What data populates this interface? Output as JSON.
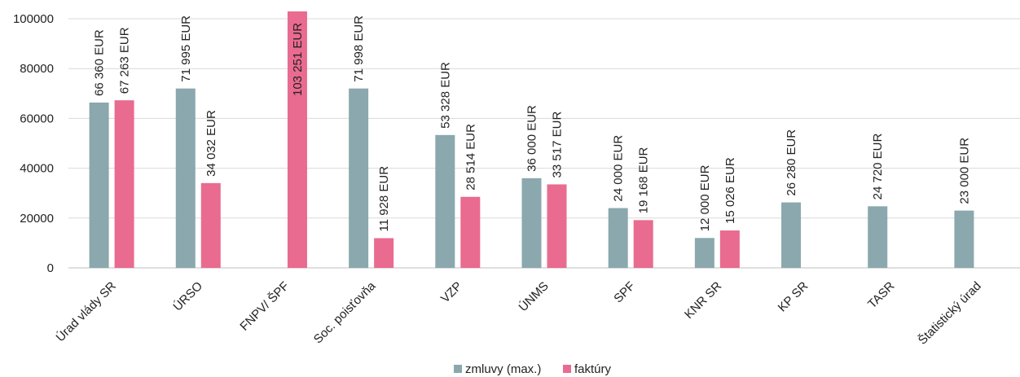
{
  "chart_data": {
    "type": "bar",
    "categories": [
      "Úrad vlády SR",
      "ÚRSO",
      "FNPV/ ŠPF",
      "Soc. poisťovňa",
      "VZP",
      "ÚNMS",
      "SPF",
      "KNR SR",
      "KP SR",
      "TASR",
      "Štatistický úrad"
    ],
    "series": [
      {
        "name": "zmluvy (max.)",
        "color": "#8aa8ad",
        "values": [
          66360,
          71995,
          null,
          71998,
          53328,
          36000,
          24000,
          12000,
          26280,
          24720,
          23000
        ],
        "labels": [
          "66 360 EUR",
          "71 995 EUR",
          "",
          "71 998 EUR",
          "53 328 EUR",
          "36 000 EUR",
          "24 000 EUR",
          "12 000 EUR",
          "26 280 EUR",
          "24 720 EUR",
          "23 000 EUR"
        ]
      },
      {
        "name": "faktúry",
        "color": "#e96b8f",
        "values": [
          67263,
          34032,
          103251,
          11928,
          28514,
          33517,
          19168,
          15026,
          null,
          null,
          null
        ],
        "labels": [
          "67 263 EUR",
          "34 032 EUR",
          "103 251 EUR",
          "11 928 EUR",
          "28 514 EUR",
          "33 517 EUR",
          "19 168 EUR",
          "15 026 EUR",
          "",
          "",
          ""
        ]
      }
    ],
    "yticks": [
      "0",
      "20000",
      "40000",
      "60000",
      "80000",
      "100000"
    ],
    "ylim": [
      0,
      100000
    ],
    "grid": true,
    "legend_position": "bottom"
  }
}
